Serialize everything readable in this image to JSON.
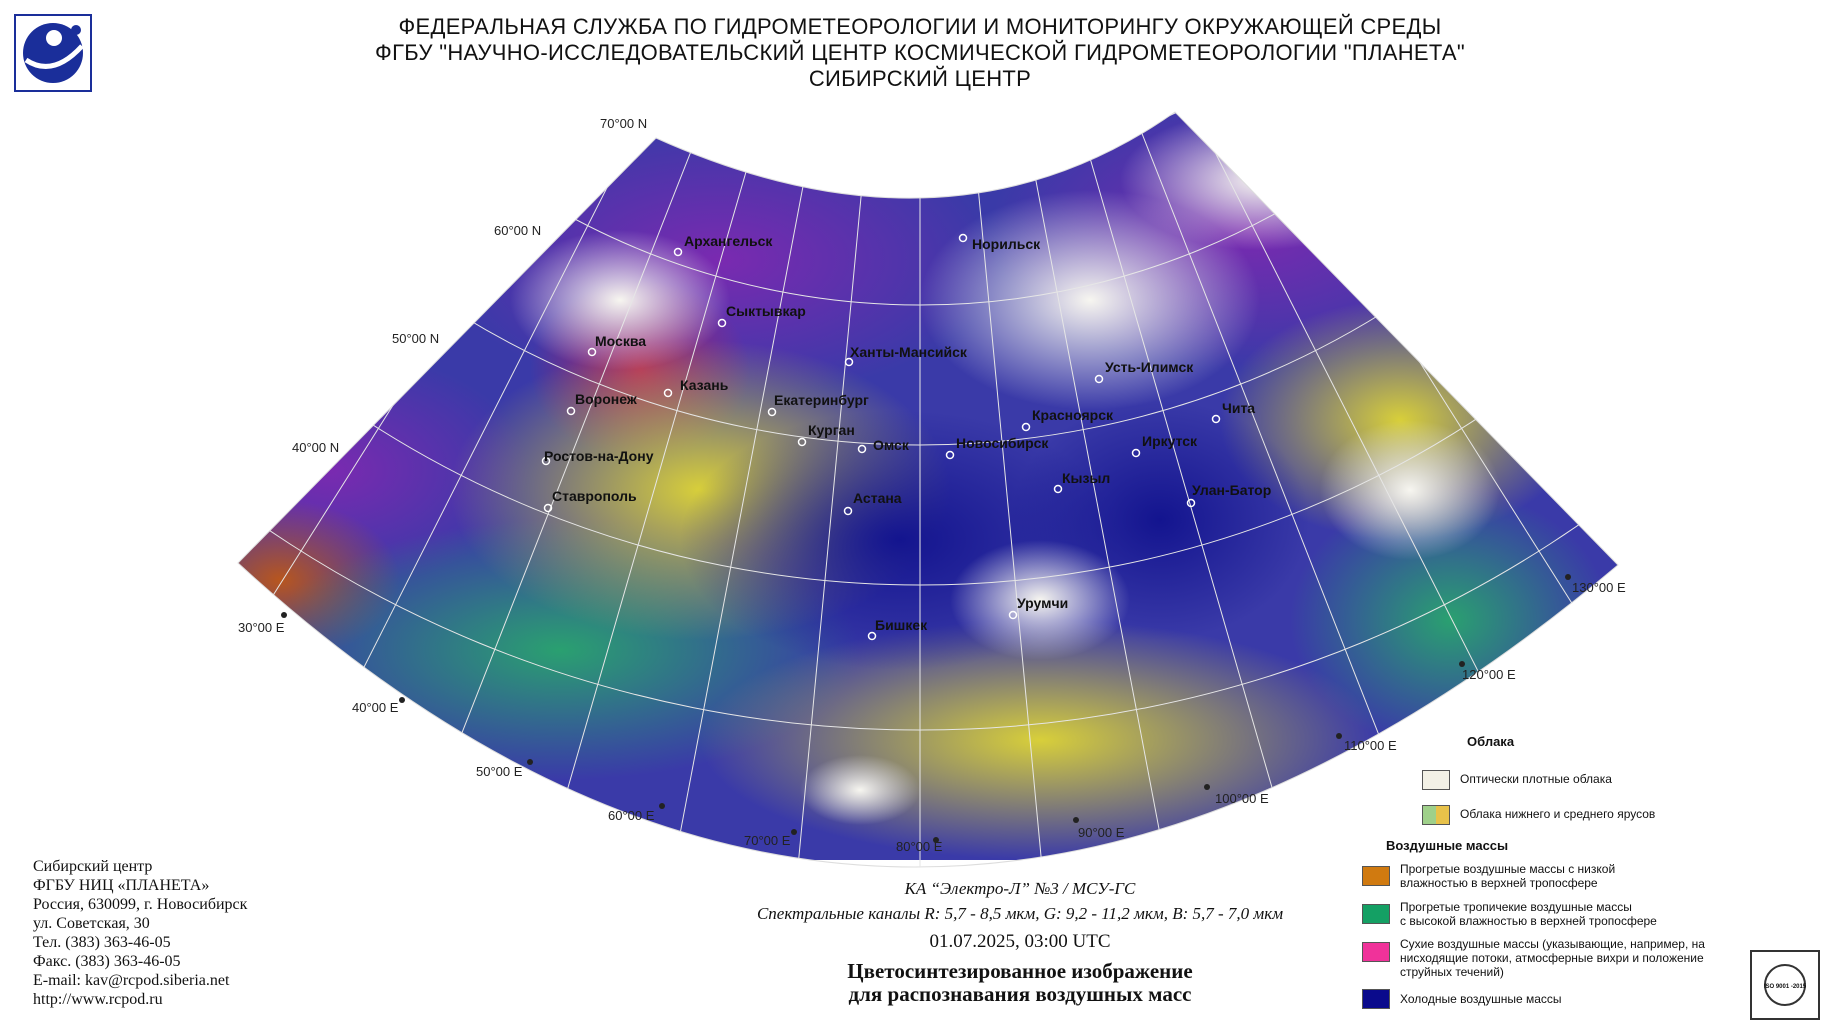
{
  "header": {
    "line1": "ФЕДЕРАЛЬНАЯ СЛУЖБА ПО ГИДРОМЕТЕОРОЛОГИИ И МОНИТОРИНГУ ОКРУЖАЮЩЕЙ СРЕДЫ",
    "line2": "ФГБУ \"НАУЧНО-ИССЛЕДОВАТЕЛЬСКИЙ ЦЕНТР КОСМИЧЕСКОЙ ГИДРОМЕТЕОРОЛОГИИ \"ПЛАНЕТА\"",
    "line3": "СИБИРСКИЙ ЦЕНТР"
  },
  "map": {
    "lat_labels": [
      "70°00 N",
      "60°00 N",
      "50°00 N",
      "40°00 N"
    ],
    "lon_labels": [
      "30°00 E",
      "40°00 E",
      "50°00 E",
      "60°00 E",
      "70°00 E",
      "80°00 E",
      "90°00 E",
      "100°00 E",
      "110°00 E",
      "120°00 E",
      "130°00 E"
    ],
    "cities": [
      "Архангельск",
      "Норильск",
      "Сыктывкар",
      "Москва",
      "Ханты-Мансийск",
      "Усть-Илимск",
      "Казань",
      "Воронеж",
      "Екатеринбург",
      "Красноярск",
      "Чита",
      "Курган",
      "Омск",
      "Новосибирск",
      "Иркутск",
      "Ростов-на-Дону",
      "Кызыл",
      "Улан-Батор",
      "Ставрополь",
      "Астана",
      "Урумчи",
      "Бишкек"
    ]
  },
  "address": {
    "line1": "Сибирский центр",
    "line2": "ФГБУ НИЦ «ПЛАНЕТА»",
    "line3": "Россия, 630099, г. Новосибирск",
    "line4": "ул. Советская, 30",
    "line5": "Тел. (383) 363-46-05",
    "line6": "Факс. (383) 363-46-05",
    "line7": "E-mail: kav@rcpod.siberia.net",
    "line8": "http://www.rcpod.ru"
  },
  "caption": {
    "satellite": "КА “Электро-Л” №3 / МСУ-ГС",
    "spectral": "Спектральные каналы R: 5,7 - 8,5 мкм, G: 9,2 - 11,2 мкм, B: 5,7 - 7,0 мкм",
    "datetime": "01.07.2025, 03:00 UTC",
    "title1": "Цветосинтезированное изображение",
    "title2": "для распознавания воздушных масс"
  },
  "legend": {
    "clouds_heading": "Облака",
    "dense_clouds": "Оптически плотные облака",
    "low_mid_clouds": "Облака нижнего и среднего ярусов",
    "air_heading": "Воздушные массы",
    "warm_dry_1": "Прогретые воздушные массы с низкой",
    "warm_dry_2": "влажностью в верхней тропосфере",
    "warm_moist_1": "Прогретые тропичекие воздушные массы",
    "warm_moist_2": "с высокой влажностью в верхней тропосфере",
    "dry_1": "Сухие воздушные массы (указывающие, например, на",
    "dry_2": "нисходящие потоки, атмосферные вихри и положение",
    "dry_3": "струйных течений)",
    "cold": "Холодные воздушные массы",
    "colors": {
      "dense": "#f3f1e6",
      "low_a": "#9fd08a",
      "low_b": "#e8c24a",
      "warm_dry": "#d07a10",
      "warm_moist": "#14a064",
      "dry": "#f0329a",
      "cold": "#0a0a8c"
    }
  },
  "iso": {
    "text": "ISO 9001 -2015"
  }
}
